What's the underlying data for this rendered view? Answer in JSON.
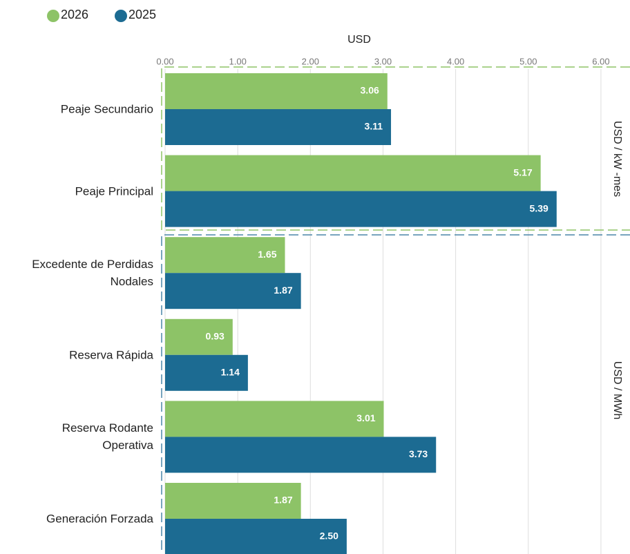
{
  "chart_data": {
    "type": "bar",
    "orientation": "horizontal",
    "x_label": "USD",
    "categories": [
      "Peaje Secundario",
      "Peaje Principal",
      "Excedente de Perdidas\nNodales",
      "Reserva Rápida",
      "Reserva Rodante\nOperativa",
      "Generación Forzada"
    ],
    "series": [
      {
        "name": "2026",
        "color": "#8dc367",
        "values": [
          3.06,
          5.17,
          1.65,
          0.93,
          3.01,
          1.87
        ],
        "value_labels": [
          "3.06",
          "5.17",
          "1.65",
          "0.93",
          "3.01",
          "1.87"
        ]
      },
      {
        "name": "2025",
        "color": "#1c6b92",
        "values": [
          3.11,
          5.39,
          1.87,
          1.14,
          3.73,
          2.5
        ],
        "value_labels": [
          "3.11",
          "5.39",
          "1.87",
          "1.14",
          "3.73",
          "2.50"
        ]
      }
    ],
    "xlim": [
      0,
      6.4
    ],
    "xticks": [
      {
        "value": 0,
        "label": "0.00"
      },
      {
        "value": 1,
        "label": "1.00"
      },
      {
        "value": 2,
        "label": "2.00"
      },
      {
        "value": 3,
        "label": "3.00"
      },
      {
        "value": 4,
        "label": "4.00"
      },
      {
        "value": 5,
        "label": "5.00"
      },
      {
        "value": 6,
        "label": "6.00"
      }
    ],
    "grid": true,
    "legend": "top-left",
    "groups": [
      {
        "label": "USD / kW -mes",
        "color": "#8dc367"
      },
      {
        "label": "USD / MWh",
        "color": "#4a86a8"
      }
    ]
  }
}
